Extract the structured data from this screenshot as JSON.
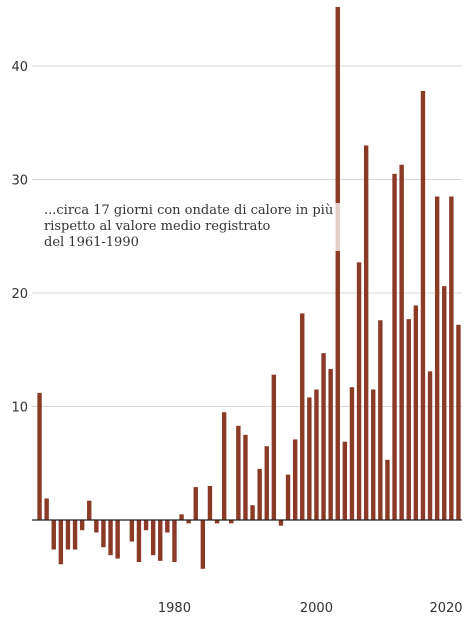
{
  "chart_data": {
    "type": "bar",
    "x": [
      1961,
      1962,
      1963,
      1964,
      1965,
      1966,
      1967,
      1968,
      1969,
      1970,
      1971,
      1972,
      1973,
      1974,
      1975,
      1976,
      1977,
      1978,
      1979,
      1980,
      1981,
      1982,
      1983,
      1984,
      1985,
      1986,
      1987,
      1988,
      1989,
      1990,
      1991,
      1992,
      1993,
      1994,
      1995,
      1996,
      1997,
      1998,
      1999,
      2000,
      2001,
      2002,
      2003,
      2004,
      2005,
      2006,
      2007,
      2008,
      2009,
      2010,
      2011,
      2012,
      2013,
      2014,
      2015,
      2016,
      2017,
      2018,
      2019,
      2020
    ],
    "values": [
      11.2,
      1.9,
      -2.6,
      -3.9,
      -2.6,
      -2.6,
      -0.9,
      1.7,
      -1.1,
      -2.4,
      -3.1,
      -3.4,
      0,
      -1.9,
      -3.7,
      -0.9,
      -3.1,
      -3.6,
      -1.1,
      -3.7,
      0.5,
      -0.3,
      2.9,
      -4.3,
      3.0,
      -0.3,
      9.5,
      -0.3,
      8.3,
      7.5,
      1.3,
      4.5,
      6.5,
      12.8,
      -0.5,
      4.0,
      7.1,
      18.2,
      10.8,
      11.5,
      14.7,
      13.3,
      45.2,
      6.9,
      11.7,
      22.7,
      33.0,
      11.5,
      17.6,
      5.3,
      30.5,
      31.3,
      17.7,
      18.9,
      37.8,
      13.1,
      28.5,
      20.6,
      28.5,
      17.2
    ],
    "xticks": [
      "1980",
      "2000",
      "2020"
    ],
    "xtick_values": [
      1980,
      2000,
      2020
    ],
    "yticks": [
      "10",
      "20",
      "30",
      "40"
    ],
    "ytick_values": [
      10,
      20,
      30,
      40
    ],
    "xlim": [
      1960.5,
      2020.5
    ],
    "ylim": [
      -6.5,
      45.5
    ],
    "grid": "horizontal",
    "bar_color": "#8b3a26",
    "annotation_lines": [
      "...circa 17 giorni con ondate di calore in più",
      "rispetto al valore medio registrato",
      "del 1961-1990"
    ]
  }
}
